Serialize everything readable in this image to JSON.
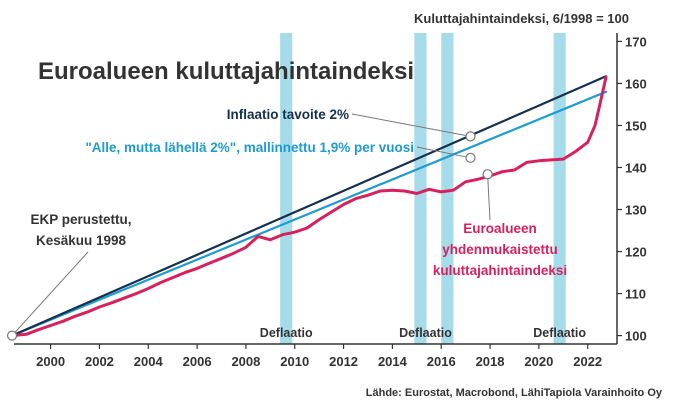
{
  "chart_data": {
    "type": "line",
    "title": "Euroalueen kuluttajahintaindeksi",
    "ylabel": "Kuluttajahintaindeksi, 6/1998 = 100",
    "source": "Lähde: Eurostat, Macrobond, LähiTapiola Varainhoito Oy",
    "xlim": [
      1998.5,
      2023.2
    ],
    "ylim": [
      98,
      172
    ],
    "x_ticks": [
      2000,
      2002,
      2004,
      2006,
      2008,
      2010,
      2012,
      2014,
      2016,
      2018,
      2020,
      2022
    ],
    "y_ticks": [
      100,
      110,
      120,
      130,
      140,
      150,
      160,
      170
    ],
    "grid": false,
    "series": [
      {
        "name": "Inflaatio tavoite 2%",
        "color": "#14304f",
        "x": [
          1998.42,
          2022.75
        ],
        "y": [
          100,
          161.7
        ]
      },
      {
        "name": "\"Alle, mutta lähellä 2%\", mallinnettu 1,9% per vuosi",
        "color": "#1e9bd0",
        "x": [
          1998.42,
          2022.75
        ],
        "y": [
          100,
          158.0
        ]
      },
      {
        "name": "Euroalueen yhdenmukaistettu kuluttajahintaindeksi",
        "color": "#d8205c",
        "x": [
          1998.42,
          1999.0,
          1999.5,
          2000.0,
          2000.5,
          2001.0,
          2001.5,
          2002.0,
          2002.5,
          2003.0,
          2003.5,
          2004.0,
          2004.5,
          2005.0,
          2005.5,
          2006.0,
          2006.5,
          2007.0,
          2007.5,
          2008.0,
          2008.5,
          2009.0,
          2009.5,
          2010.0,
          2010.5,
          2011.0,
          2011.5,
          2012.0,
          2012.5,
          2013.0,
          2013.5,
          2014.0,
          2014.5,
          2015.0,
          2015.5,
          2016.0,
          2016.5,
          2017.0,
          2017.5,
          2018.0,
          2018.5,
          2019.0,
          2019.5,
          2020.0,
          2020.5,
          2021.0,
          2021.5,
          2022.0,
          2022.3,
          2022.5,
          2022.75
        ],
        "y": [
          100,
          100.3,
          101.4,
          102.4,
          103.4,
          104.6,
          105.6,
          106.8,
          107.8,
          108.9,
          110.0,
          111.2,
          112.6,
          113.8,
          115.0,
          116.0,
          117.2,
          118.4,
          119.6,
          121.0,
          123.6,
          122.8,
          124.0,
          124.6,
          125.6,
          127.6,
          129.4,
          131.2,
          132.6,
          133.4,
          134.4,
          134.6,
          134.4,
          133.8,
          134.8,
          134.2,
          134.6,
          136.6,
          137.2,
          138.0,
          139.0,
          139.4,
          141.2,
          141.6,
          141.8,
          142.0,
          143.8,
          146.0,
          150.0,
          155.0,
          161.5
        ]
      }
    ],
    "annotations": [
      {
        "text": "Inflaatio tavoite 2%",
        "x": 2017.2,
        "y": 147.4
      },
      {
        "text": "\"Alle, mutta lähellä 2%\", mallinnettu 1,9% per vuosi",
        "x": 2017.2,
        "y": 142.3
      },
      {
        "text": "EKP perustettu,",
        "x": 1998.42,
        "y": 100
      },
      {
        "text": "Kesäkuu 1998",
        "x": 1998.42,
        "y": 100
      },
      {
        "text": "Euroalueen",
        "x": 2017.9,
        "y": 138.4
      },
      {
        "text": "yhdenmukaistettu",
        "x": 2017.9,
        "y": 138.4
      },
      {
        "text": "kuluttajahintaindeksi",
        "x": 2017.9,
        "y": 138.4
      }
    ],
    "shaded_periods": [
      {
        "label": "Deflaatio",
        "start": 2009.4,
        "end": 2009.9
      },
      {
        "label": "Deflaatio",
        "start": 2014.9,
        "end": 2015.4
      },
      {
        "label": "Deflaatio",
        "start": 2016.0,
        "end": 2016.5
      },
      {
        "label": "Deflaatio",
        "start": 2020.6,
        "end": 2021.1
      }
    ]
  }
}
